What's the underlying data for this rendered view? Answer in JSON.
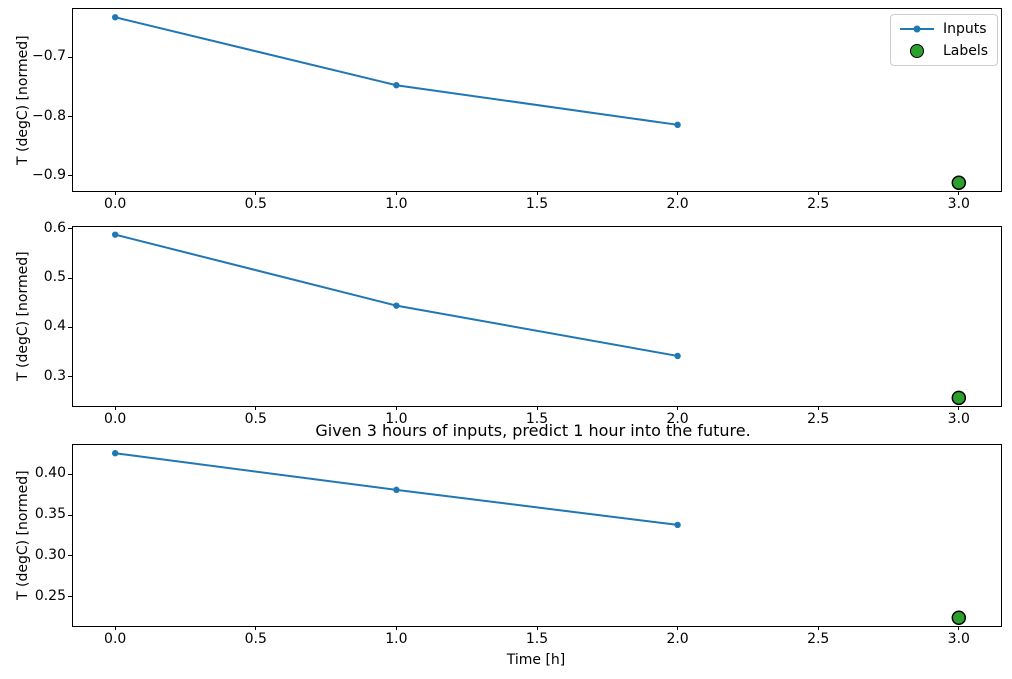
{
  "figure": {
    "title": "Given 3 hours of inputs, predict 1 hour into the future.",
    "xlabel": "Time [h]",
    "background": "#ffffff"
  },
  "colors": {
    "inputs": "#1f77b4",
    "labels": "#2ca02c",
    "labels_edge": "#000000",
    "axis": "#000000",
    "legend_border": "#cccccc"
  },
  "legend": {
    "items": [
      {
        "label": "Inputs",
        "marker": "line-dot"
      },
      {
        "label": "Labels",
        "marker": "circle"
      }
    ]
  },
  "chart_data": [
    {
      "type": "line",
      "ylabel": "T (degC) [normed]",
      "xlim": [
        -0.15,
        3.15
      ],
      "ylim": [
        -0.926,
        -0.618
      ],
      "series": [
        {
          "name": "Inputs",
          "style": "line-marker",
          "color": "#1f77b4",
          "x": [
            0,
            1,
            2
          ],
          "y": [
            -0.632,
            -0.747,
            -0.814
          ]
        },
        {
          "name": "Labels",
          "style": "big-dot",
          "color": "#2ca02c",
          "x": [
            3
          ],
          "y": [
            -0.912
          ]
        }
      ],
      "xticks": [
        {
          "v": 0.0,
          "label": "0.0"
        },
        {
          "v": 0.5,
          "label": "0.5"
        },
        {
          "v": 1.0,
          "label": "1.0"
        },
        {
          "v": 1.5,
          "label": "1.5"
        },
        {
          "v": 2.0,
          "label": "2.0"
        },
        {
          "v": 2.5,
          "label": "2.5"
        },
        {
          "v": 3.0,
          "label": "3.0"
        }
      ],
      "yticks": [
        {
          "v": -0.7,
          "label": "−0.7"
        },
        {
          "v": -0.8,
          "label": "−0.8"
        },
        {
          "v": -0.9,
          "label": "−0.9"
        }
      ]
    },
    {
      "type": "line",
      "ylabel": "T (degC) [normed]",
      "xlim": [
        -0.15,
        3.15
      ],
      "ylim": [
        0.2405,
        0.6035
      ],
      "series": [
        {
          "name": "Inputs",
          "style": "line-marker",
          "color": "#1f77b4",
          "x": [
            0,
            1,
            2
          ],
          "y": [
            0.588,
            0.444,
            0.342
          ]
        },
        {
          "name": "Labels",
          "style": "big-dot",
          "color": "#2ca02c",
          "x": [
            3
          ],
          "y": [
            0.257
          ]
        }
      ],
      "xticks": [
        {
          "v": 0.0,
          "label": "0.0"
        },
        {
          "v": 0.5,
          "label": "0.5"
        },
        {
          "v": 1.0,
          "label": "1.0"
        },
        {
          "v": 1.5,
          "label": "1.5"
        },
        {
          "v": 2.0,
          "label": "2.0"
        },
        {
          "v": 2.5,
          "label": "2.5"
        },
        {
          "v": 3.0,
          "label": "3.0"
        }
      ],
      "yticks": [
        {
          "v": 0.6,
          "label": "0.6"
        },
        {
          "v": 0.5,
          "label": "0.5"
        },
        {
          "v": 0.4,
          "label": "0.4"
        },
        {
          "v": 0.3,
          "label": "0.3"
        }
      ]
    },
    {
      "type": "line",
      "ylabel": "T (degC) [normed]",
      "xlim": [
        -0.15,
        3.15
      ],
      "ylim": [
        0.2139,
        0.4361
      ],
      "series": [
        {
          "name": "Inputs",
          "style": "line-marker",
          "color": "#1f77b4",
          "x": [
            0,
            1,
            2
          ],
          "y": [
            0.426,
            0.381,
            0.338
          ]
        },
        {
          "name": "Labels",
          "style": "big-dot",
          "color": "#2ca02c",
          "x": [
            3
          ],
          "y": [
            0.224
          ]
        }
      ],
      "xticks": [
        {
          "v": 0.0,
          "label": "0.0"
        },
        {
          "v": 0.5,
          "label": "0.5"
        },
        {
          "v": 1.0,
          "label": "1.0"
        },
        {
          "v": 1.5,
          "label": "1.5"
        },
        {
          "v": 2.0,
          "label": "2.0"
        },
        {
          "v": 2.5,
          "label": "2.5"
        },
        {
          "v": 3.0,
          "label": "3.0"
        }
      ],
      "yticks": [
        {
          "v": 0.4,
          "label": "0.40"
        },
        {
          "v": 0.35,
          "label": "0.35"
        },
        {
          "v": 0.3,
          "label": "0.30"
        },
        {
          "v": 0.25,
          "label": "0.25"
        }
      ]
    }
  ]
}
